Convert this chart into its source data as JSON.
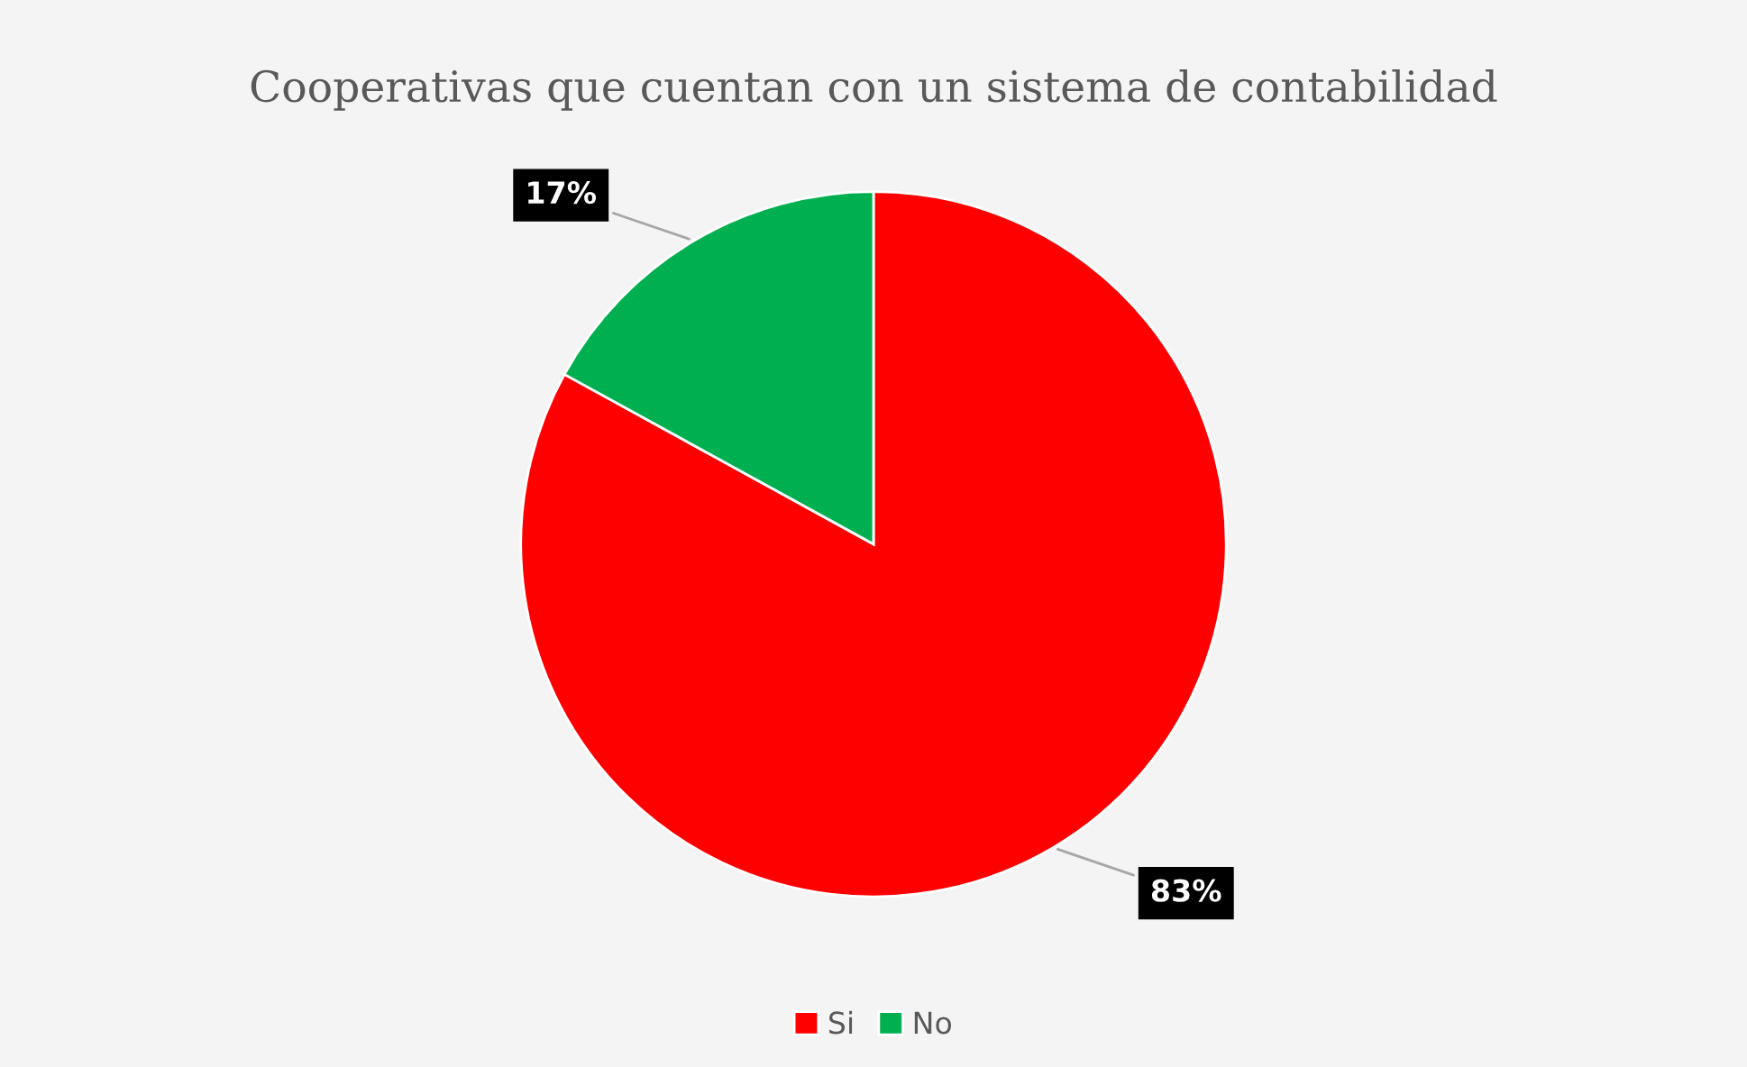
{
  "chart_data": {
    "type": "pie",
    "title": "Cooperativas que cuentan con un sistema de contabilidad",
    "categories": [
      "Si",
      "No"
    ],
    "values": [
      83,
      17
    ],
    "colors": [
      "#ff0000",
      "#00b050"
    ],
    "value_labels": [
      "83%",
      "17%"
    ],
    "legend": "bottom"
  }
}
